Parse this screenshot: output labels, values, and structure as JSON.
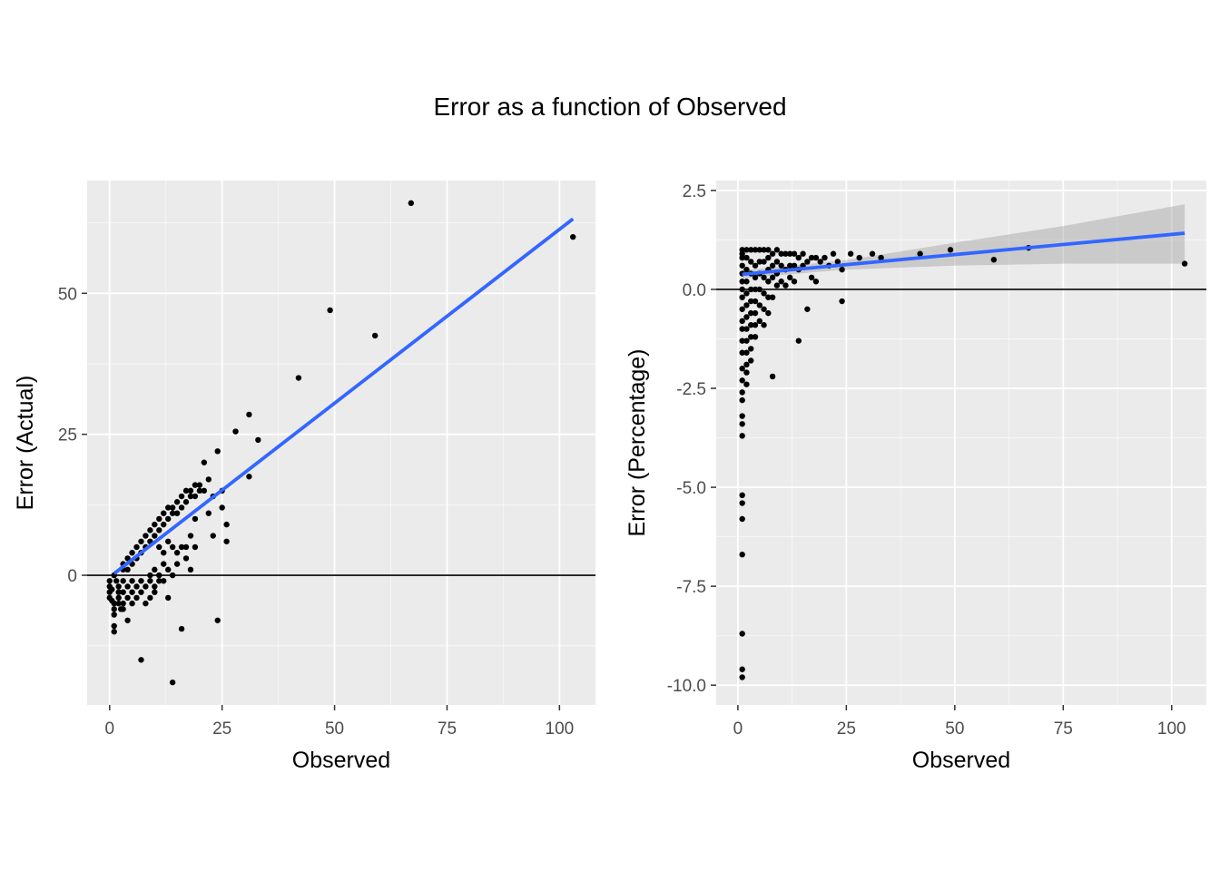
{
  "title": "Error as a function of Observed",
  "colors": {
    "panel_bg": "#ebebeb",
    "grid_major": "#ffffff",
    "points": "#000000",
    "fit_line": "#3366ff",
    "ribbon": "#999999",
    "hline": "#000000"
  },
  "chart_data": [
    {
      "type": "scatter",
      "xlabel": "Observed",
      "ylabel": "Error (Actual)",
      "xlim": [
        -5,
        108
      ],
      "ylim": [
        -23,
        70
      ],
      "xticks": [
        0,
        25,
        50,
        75,
        100
      ],
      "yticks": [
        0,
        25,
        50
      ],
      "ytick_labels": [
        "0",
        "25",
        "50"
      ],
      "grid": true,
      "hline": 0,
      "fit": {
        "method": "lm",
        "x": [
          1,
          103
        ],
        "y": [
          0.3,
          63.2
        ]
      },
      "points": [
        [
          0,
          -1
        ],
        [
          0,
          -2
        ],
        [
          0,
          -3
        ],
        [
          0,
          -4
        ],
        [
          0.5,
          -2.5
        ],
        [
          1,
          -5
        ],
        [
          1,
          -6
        ],
        [
          1,
          -7
        ],
        [
          1,
          -9
        ],
        [
          1,
          -10
        ],
        [
          0.5,
          -4.5
        ],
        [
          1,
          0
        ],
        [
          1.5,
          -1
        ],
        [
          2,
          -2
        ],
        [
          2,
          -3
        ],
        [
          2,
          -4
        ],
        [
          2,
          -5
        ],
        [
          2.5,
          -6
        ],
        [
          3,
          -1
        ],
        [
          3,
          -3
        ],
        [
          3,
          -5
        ],
        [
          3,
          -6
        ],
        [
          3,
          1
        ],
        [
          3,
          2
        ],
        [
          4,
          -2
        ],
        [
          4,
          -4
        ],
        [
          4,
          -8
        ],
        [
          4,
          1
        ],
        [
          4,
          3
        ],
        [
          5,
          -1
        ],
        [
          5,
          -3
        ],
        [
          5,
          -5
        ],
        [
          5,
          2
        ],
        [
          5,
          4
        ],
        [
          6,
          -2
        ],
        [
          6,
          -4
        ],
        [
          6,
          3
        ],
        [
          6,
          5
        ],
        [
          7,
          -1
        ],
        [
          7,
          -3
        ],
        [
          7,
          -15
        ],
        [
          7,
          4
        ],
        [
          7,
          6
        ],
        [
          8,
          -2
        ],
        [
          8,
          -5
        ],
        [
          8,
          5
        ],
        [
          8,
          7
        ],
        [
          9,
          -1
        ],
        [
          9,
          -4
        ],
        [
          9,
          0
        ],
        [
          9,
          6
        ],
        [
          9,
          8
        ],
        [
          10,
          -2
        ],
        [
          10,
          -3
        ],
        [
          10,
          1
        ],
        [
          10,
          7
        ],
        [
          10,
          9
        ],
        [
          11,
          0
        ],
        [
          11,
          -1
        ],
        [
          11,
          5
        ],
        [
          11,
          8
        ],
        [
          11,
          10
        ],
        [
          12,
          -1
        ],
        [
          12,
          2
        ],
        [
          12,
          4
        ],
        [
          12,
          9
        ],
        [
          12,
          11
        ],
        [
          13,
          -4
        ],
        [
          13,
          1
        ],
        [
          13,
          6
        ],
        [
          13,
          10
        ],
        [
          13,
          12
        ],
        [
          14,
          -19
        ],
        [
          14,
          0
        ],
        [
          14,
          5
        ],
        [
          14,
          11
        ],
        [
          14,
          12
        ],
        [
          15,
          2
        ],
        [
          15,
          4
        ],
        [
          15,
          11
        ],
        [
          15,
          13
        ],
        [
          16,
          -9.5
        ],
        [
          16,
          5
        ],
        [
          16,
          12
        ],
        [
          16,
          14
        ],
        [
          17,
          3
        ],
        [
          17,
          5
        ],
        [
          17,
          13
        ],
        [
          17,
          15
        ],
        [
          18,
          1
        ],
        [
          18,
          7
        ],
        [
          18,
          14
        ],
        [
          18,
          15
        ],
        [
          19,
          5
        ],
        [
          19,
          10
        ],
        [
          19,
          14
        ],
        [
          19,
          16
        ],
        [
          20,
          15
        ],
        [
          20,
          16
        ],
        [
          21,
          20
        ],
        [
          21,
          15
        ],
        [
          22,
          17
        ],
        [
          22,
          11
        ],
        [
          23,
          7
        ],
        [
          23,
          14
        ],
        [
          24,
          22
        ],
        [
          24,
          -8
        ],
        [
          25,
          15
        ],
        [
          25,
          12
        ],
        [
          26,
          9
        ],
        [
          26,
          6
        ],
        [
          28,
          25.5
        ],
        [
          31,
          28.5
        ],
        [
          31,
          17.5
        ],
        [
          33,
          24
        ],
        [
          42,
          35
        ],
        [
          49,
          47
        ],
        [
          59,
          42.5
        ],
        [
          67,
          66
        ],
        [
          103,
          60
        ]
      ]
    },
    {
      "type": "scatter",
      "xlabel": "Observed",
      "ylabel": "Error (Percentage)",
      "xlim": [
        -5,
        108
      ],
      "ylim": [
        -10.5,
        2.75
      ],
      "xticks": [
        0,
        25,
        50,
        75,
        100
      ],
      "yticks": [
        2.5,
        0,
        -2.5,
        -5,
        -7.5,
        -10
      ],
      "ytick_labels": [
        "2.5",
        "0.0",
        "-2.5",
        "-5.0",
        "-7.5",
        "-10.0"
      ],
      "grid": true,
      "hline": 0,
      "fit": {
        "method": "lm",
        "x": [
          1,
          103
        ],
        "y": [
          0.38,
          1.42
        ]
      },
      "ribbon": {
        "x": [
          1,
          25,
          50,
          75,
          103
        ],
        "lower": [
          0.28,
          0.5,
          0.6,
          0.65,
          0.65
        ],
        "upper": [
          0.48,
          0.74,
          1.18,
          1.6,
          2.15
        ]
      },
      "points": [
        [
          1,
          1
        ],
        [
          1,
          0.9
        ],
        [
          1,
          0.8
        ],
        [
          1,
          0.6
        ],
        [
          1,
          0.4
        ],
        [
          1,
          0.2
        ],
        [
          1,
          0
        ],
        [
          1,
          -0.2
        ],
        [
          1,
          -0.5
        ],
        [
          1,
          -0.8
        ],
        [
          1,
          -1
        ],
        [
          1,
          -1.3
        ],
        [
          1,
          -1.6
        ],
        [
          1,
          -2
        ],
        [
          1,
          -2.3
        ],
        [
          1,
          -2.6
        ],
        [
          1,
          -2.8
        ],
        [
          1,
          -3.2
        ],
        [
          1,
          -3.4
        ],
        [
          1,
          -3.7
        ],
        [
          1,
          -5.2
        ],
        [
          1,
          -5.4
        ],
        [
          1,
          -5.8
        ],
        [
          1,
          -6.7
        ],
        [
          1,
          -8.7
        ],
        [
          1,
          -9.6
        ],
        [
          1,
          -9.8
        ],
        [
          2,
          1
        ],
        [
          2,
          0.8
        ],
        [
          2,
          0.5
        ],
        [
          2,
          0.2
        ],
        [
          2,
          -0.1
        ],
        [
          2,
          -0.4
        ],
        [
          2,
          -0.7
        ],
        [
          2,
          -1
        ],
        [
          2,
          -1.3
        ],
        [
          2,
          -1.6
        ],
        [
          2,
          -1.9
        ],
        [
          2,
          -2.1
        ],
        [
          2,
          -2.4
        ],
        [
          3,
          1
        ],
        [
          3,
          0.7
        ],
        [
          3,
          0.4
        ],
        [
          3,
          0
        ],
        [
          3,
          -0.3
        ],
        [
          3,
          -0.6
        ],
        [
          3,
          -0.9
        ],
        [
          3,
          -1.2
        ],
        [
          3,
          -1.5
        ],
        [
          3,
          -1.8
        ],
        [
          4,
          1
        ],
        [
          4,
          0.6
        ],
        [
          4,
          0.3
        ],
        [
          4,
          0
        ],
        [
          4,
          -0.3
        ],
        [
          4,
          -0.6
        ],
        [
          4,
          -0.9
        ],
        [
          4,
          -1.2
        ],
        [
          5,
          1
        ],
        [
          5,
          0.7
        ],
        [
          5,
          0.4
        ],
        [
          5,
          0
        ],
        [
          5,
          -0.4
        ],
        [
          5,
          -0.8
        ],
        [
          6,
          1
        ],
        [
          6,
          0.7
        ],
        [
          6,
          0.3
        ],
        [
          6,
          -0.1
        ],
        [
          6,
          -0.5
        ],
        [
          6,
          -0.9
        ],
        [
          7,
          1
        ],
        [
          7,
          0.8
        ],
        [
          7,
          0.5
        ],
        [
          7,
          0.2
        ],
        [
          7,
          -0.2
        ],
        [
          7,
          -0.6
        ],
        [
          8,
          0.9
        ],
        [
          8,
          0.6
        ],
        [
          8,
          0.3
        ],
        [
          8,
          -0.2
        ],
        [
          8,
          -2.2
        ],
        [
          9,
          1
        ],
        [
          9,
          0.7
        ],
        [
          9,
          0.4
        ],
        [
          9,
          0.1
        ],
        [
          10,
          0.9
        ],
        [
          10,
          0.6
        ],
        [
          10,
          0.2
        ],
        [
          11,
          0.9
        ],
        [
          11,
          0.5
        ],
        [
          11,
          0.1
        ],
        [
          12,
          0.9
        ],
        [
          12,
          0.6
        ],
        [
          12,
          0.3
        ],
        [
          13,
          0.9
        ],
        [
          13,
          0.6
        ],
        [
          13,
          0.2
        ],
        [
          14,
          0.8
        ],
        [
          14,
          0.5
        ],
        [
          14,
          -1.3
        ],
        [
          15,
          0.9
        ],
        [
          15,
          0.6
        ],
        [
          16,
          0.7
        ],
        [
          16,
          -0.5
        ],
        [
          17,
          0.8
        ],
        [
          17,
          0.3
        ],
        [
          18,
          0.8
        ],
        [
          18,
          0.2
        ],
        [
          19,
          0.7
        ],
        [
          20,
          0.8
        ],
        [
          21,
          0.6
        ],
        [
          22,
          0.9
        ],
        [
          23,
          0.7
        ],
        [
          24,
          0.5
        ],
        [
          24,
          -0.3
        ],
        [
          26,
          0.9
        ],
        [
          28,
          0.8
        ],
        [
          31,
          0.9
        ],
        [
          33,
          0.8
        ],
        [
          42,
          0.9
        ],
        [
          49,
          1
        ],
        [
          59,
          0.75
        ],
        [
          67,
          1.05
        ],
        [
          103,
          0.65
        ]
      ]
    }
  ]
}
